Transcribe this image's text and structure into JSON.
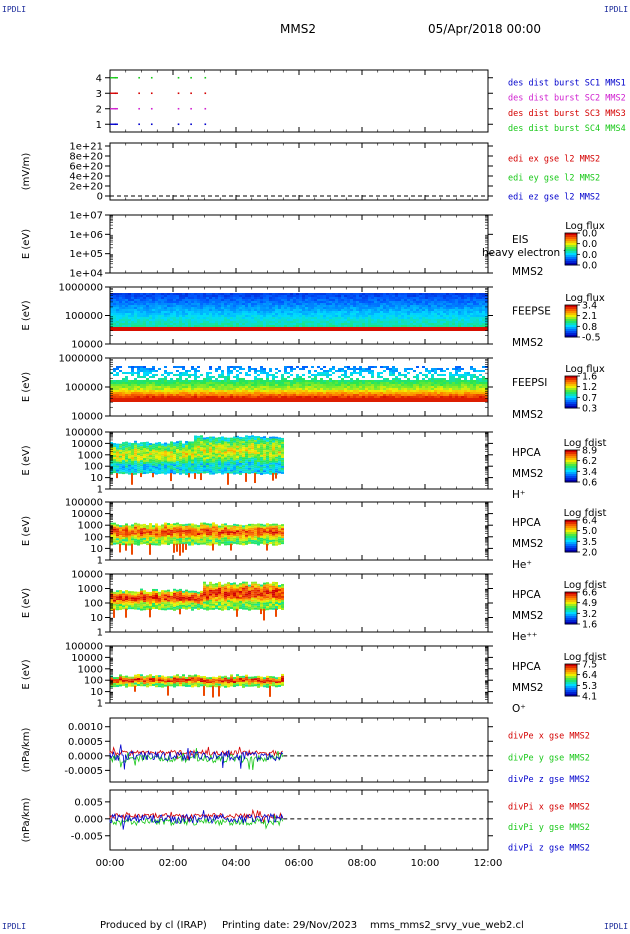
{
  "header": {
    "corner_tl": "IPDLI",
    "corner_tr": "IPDLI",
    "corner_bl": "IPDLI",
    "corner_br": "IPDLI",
    "title": "MMS2",
    "date": "05/Apr/2018 00:00"
  },
  "footer": {
    "produced": "Produced by cl (IRAP)",
    "printing": "Printing date: 29/Nov/2023",
    "script": "mms_mms2_srvy_vue_web2.cl"
  },
  "colors": {
    "red": "#d40000",
    "magenta": "#d020d0",
    "green": "#18c818",
    "blue": "#0000cc"
  },
  "chart_data": [
    {
      "id": "p1",
      "type": "scatter",
      "yticks": [
        "1",
        "2",
        "3",
        "4"
      ],
      "ylim": [
        0.5,
        4.5
      ],
      "legend": [
        {
          "text": "des dist burst SC1 MMS1",
          "color": "#0000cc"
        },
        {
          "text": "des dist burst SC2 MMS2",
          "color": "#d020d0"
        },
        {
          "text": "des dist burst SC3 MMS3",
          "color": "#d40000"
        },
        {
          "text": "des dist burst SC4 MMS4",
          "color": "#18c818"
        }
      ],
      "series": [
        {
          "level": 4,
          "color": "#18c818",
          "x": [
            0.15,
            0.9,
            1.3,
            2.15,
            2.55,
            3.0
          ]
        },
        {
          "level": 3,
          "color": "#d40000",
          "x": [
            0.15,
            0.9,
            1.3,
            2.15,
            2.55,
            3.0
          ]
        },
        {
          "level": 2,
          "color": "#d020d0",
          "x": [
            0.15,
            0.9,
            1.3,
            2.15,
            2.55,
            3.0
          ]
        },
        {
          "level": 1,
          "color": "#0000cc",
          "x": [
            0.15,
            0.9,
            1.3,
            2.15,
            2.55,
            3.0
          ]
        }
      ]
    },
    {
      "id": "p2",
      "type": "line",
      "ylabel": "(mV/m)",
      "yticks": [
        "1e+21",
        "8e+20",
        "6e+20",
        "4e+20",
        "2e+20",
        "0"
      ],
      "legend": [
        {
          "text": "edi ex gse l2 MMS2",
          "color": "#d40000"
        },
        {
          "text": "edi ey gse l2 MMS2",
          "color": "#18c818"
        },
        {
          "text": "edi ez gse l2 MMS2",
          "color": "#0000cc"
        }
      ]
    },
    {
      "id": "p3",
      "type": "heatmap",
      "ylabel": "E (eV)",
      "yticks": [
        "1e+07",
        "1e+06",
        "1e+05",
        "1e+04"
      ],
      "labels": [
        "EIS",
        "MMS2"
      ],
      "overlay_text": "heavy electron to",
      "cbar_title": "Log flux",
      "cbar_ticks": [
        "0.0",
        "0.0",
        "0.0",
        "0.0"
      ]
    },
    {
      "id": "p4",
      "type": "heatmap",
      "ylabel": "E (eV)",
      "yticks": [
        "1000000",
        "100000",
        "10000"
      ],
      "labels": [
        "FEEPSE",
        "MMS2"
      ],
      "cbar_title": "Log flux",
      "cbar_ticks": [
        "3.4",
        "2.1",
        "0.8",
        "-0.5"
      ]
    },
    {
      "id": "p5",
      "type": "heatmap",
      "ylabel": "E (eV)",
      "yticks": [
        "1000000",
        "100000",
        "10000"
      ],
      "labels": [
        "FEEPSI",
        "MMS2"
      ],
      "cbar_title": "Log flux",
      "cbar_ticks": [
        "1.6",
        "1.2",
        "0.7",
        "0.3"
      ]
    },
    {
      "id": "p6",
      "type": "heatmap",
      "ylabel": "E (eV)",
      "yticks": [
        "100000",
        "10000",
        "1000",
        "100",
        "10",
        "1"
      ],
      "labels": [
        "HPCA",
        "MMS2",
        "H⁺"
      ],
      "cbar_title": "Log fdist",
      "cbar_ticks": [
        "8.9",
        "6.2",
        "3.4",
        "0.6"
      ]
    },
    {
      "id": "p7",
      "type": "heatmap",
      "ylabel": "E (eV)",
      "yticks": [
        "100000",
        "10000",
        "1000",
        "100",
        "10",
        "1"
      ],
      "labels": [
        "HPCA",
        "MMS2",
        "He⁺"
      ],
      "cbar_title": "Log fdist",
      "cbar_ticks": [
        "6.4",
        "5.0",
        "3.5",
        "2.0"
      ]
    },
    {
      "id": "p8",
      "type": "heatmap",
      "ylabel": "E (eV)",
      "yticks": [
        "10000",
        "1000",
        "100",
        "10",
        "1"
      ],
      "labels": [
        "HPCA",
        "MMS2",
        "He⁺⁺"
      ],
      "cbar_title": "Log fdist",
      "cbar_ticks": [
        "6.6",
        "4.9",
        "3.2",
        "1.6"
      ]
    },
    {
      "id": "p9",
      "type": "heatmap",
      "ylabel": "E (eV)",
      "yticks": [
        "100000",
        "10000",
        "1000",
        "100",
        "10",
        "1"
      ],
      "labels": [
        "HPCA",
        "MMS2",
        "O⁺"
      ],
      "cbar_title": "Log fdist",
      "cbar_ticks": [
        "7.5",
        "6.4",
        "5.3",
        "4.1"
      ]
    },
    {
      "id": "p10",
      "type": "line",
      "ylabel": "(nPa/km)",
      "yticks": [
        "0.0010",
        "0.0005",
        "0.0000",
        "-0.0005"
      ],
      "ylim": [
        -0.0009,
        0.0013
      ],
      "legend": [
        {
          "text": "divPe x gse MMS2",
          "color": "#d40000"
        },
        {
          "text": "divPe y gse MMS2",
          "color": "#18c818"
        },
        {
          "text": "divPe z gse MMS2",
          "color": "#0000cc"
        }
      ]
    },
    {
      "id": "p11",
      "type": "line",
      "ylabel": "(nPa/km)",
      "yticks": [
        "0.005",
        "0.000",
        "-0.005"
      ],
      "ylim": [
        -0.0092,
        0.0085
      ],
      "legend": [
        {
          "text": "divPi x gse MMS2",
          "color": "#d40000"
        },
        {
          "text": "divPi y gse MMS2",
          "color": "#18c818"
        },
        {
          "text": "divPi z gse MMS2",
          "color": "#0000cc"
        }
      ]
    }
  ],
  "xaxis": {
    "ticks": [
      "00:00",
      "02:00",
      "04:00",
      "06:00",
      "08:00",
      "10:00",
      "12:00"
    ],
    "range_hours": [
      0,
      12
    ],
    "data_end_hours": 5.5
  }
}
